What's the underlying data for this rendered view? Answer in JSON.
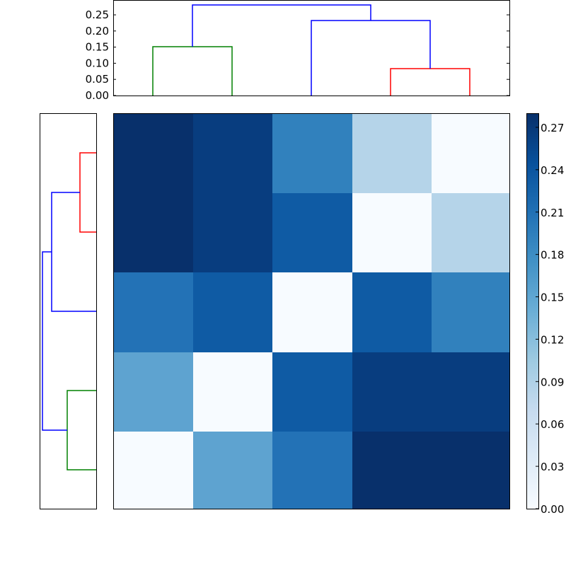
{
  "chart_data": {
    "type": "heatmap",
    "title": "",
    "colormap": "Blues",
    "matrix": [
      [
        0.28,
        0.26,
        0.18,
        0.08,
        0.0
      ],
      [
        0.28,
        0.26,
        0.23,
        0.0,
        0.08
      ],
      [
        0.2,
        0.23,
        0.0,
        0.23,
        0.18
      ],
      [
        0.15,
        0.0,
        0.23,
        0.26,
        0.26
      ],
      [
        0.0,
        0.15,
        0.2,
        0.28,
        0.28
      ]
    ],
    "cell_colors": [
      [
        "#08306b",
        "#083d7f",
        "#3181bd",
        "#b5d4e9",
        "#f7fbff"
      ],
      [
        "#08306b",
        "#083d7f",
        "#0f5ba4",
        "#f7fbff",
        "#b5d4e9"
      ],
      [
        "#2372b6",
        "#0f5ba4",
        "#f7fbff",
        "#0f5ba4",
        "#3181bd"
      ],
      [
        "#5ea3d0",
        "#f7fbff",
        "#0f5ba4",
        "#083d7f",
        "#083d7f"
      ],
      [
        "#f7fbff",
        "#5ea3d0",
        "#2372b6",
        "#08306b",
        "#08306b"
      ]
    ],
    "colorbar": {
      "range": [
        0.0,
        0.28
      ],
      "ticks": [
        "0.00",
        "0.03",
        "0.06",
        "0.09",
        "0.12",
        "0.15",
        "0.18",
        "0.21",
        "0.24",
        "0.27"
      ]
    },
    "top_dendrogram": {
      "yticks": [
        "0.00",
        "0.05",
        "0.10",
        "0.15",
        "0.20",
        "0.25"
      ],
      "ylim": [
        0.0,
        0.29
      ],
      "links": [
        {
          "left_leaf": 0,
          "right_leaf": 1,
          "height": 0.15,
          "color": "#008000"
        },
        {
          "left_leaf": 3,
          "right_leaf": 4,
          "height": 0.085,
          "color": "#ff0000"
        },
        {
          "left": "leaf2",
          "right": "cluster(3,4)",
          "height": 0.235,
          "color": "#0000ff"
        },
        {
          "left": "cluster(0,1)",
          "right": "cluster(2,3,4)",
          "height": 0.28,
          "color": "#0000ff"
        }
      ]
    },
    "left_dendrogram": {
      "links": [
        {
          "leaves": "rows 0-1",
          "height": 0.085,
          "color": "#ff0000"
        },
        {
          "leaves": "rows 3-4",
          "height": 0.15,
          "color": "#008000"
        },
        {
          "leaves": "cluster(0,1)+row 2",
          "height": 0.235,
          "color": "#0000ff"
        },
        {
          "leaves": "all",
          "height": 0.28,
          "color": "#0000ff"
        }
      ]
    },
    "grid": false,
    "xlabel": "",
    "ylabel": ""
  }
}
